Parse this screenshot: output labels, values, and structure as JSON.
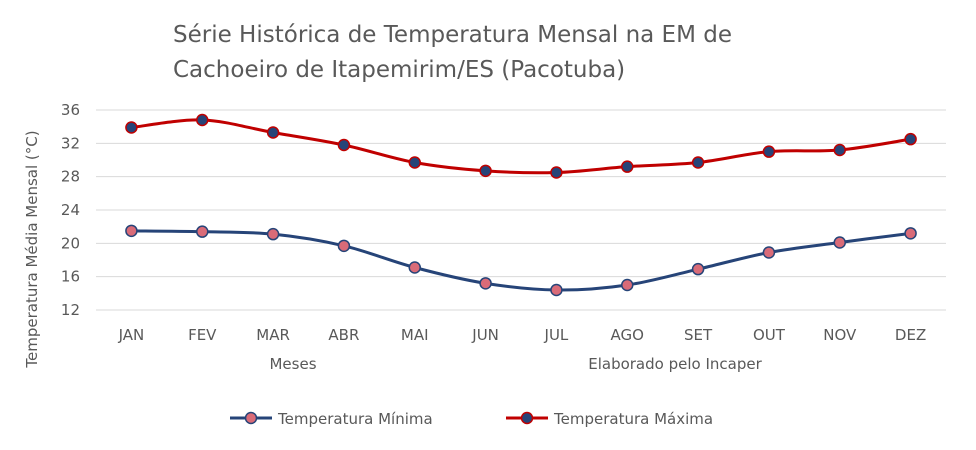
{
  "chart_data": {
    "type": "line",
    "title_lines": [
      "Série Histórica de Temperatura Mensal na EM de",
      "Cachoeiro de Itapemirim/ES (Pacotuba)"
    ],
    "xlabel": "Meses",
    "source_note": "Elaborado pelo Incaper",
    "ylabel": "Temperatura Média Mensal (°C)",
    "categories": [
      "JAN",
      "FEV",
      "MAR",
      "ABR",
      "MAI",
      "JUN",
      "JUL",
      "AGO",
      "SET",
      "OUT",
      "NOV",
      "DEZ"
    ],
    "yticks": [
      12,
      16,
      20,
      24,
      28,
      32,
      36
    ],
    "ylim": [
      12,
      36
    ],
    "grid": true,
    "legend_position": "bottom",
    "series": [
      {
        "name": "Temperatura Mínima",
        "line_color": "#264478",
        "marker_fill": "#d96b78",
        "marker_edge": "#264478",
        "values": [
          21.5,
          21.4,
          21.1,
          19.7,
          17.1,
          15.2,
          14.4,
          15.0,
          16.9,
          18.9,
          20.1,
          21.2
        ]
      },
      {
        "name": "Temperatura Máxima",
        "line_color": "#c00000",
        "marker_fill": "#264478",
        "marker_edge": "#c00000",
        "values": [
          33.9,
          34.8,
          33.3,
          31.8,
          29.7,
          28.7,
          28.5,
          29.2,
          29.7,
          31.0,
          31.2,
          32.5
        ]
      }
    ]
  }
}
